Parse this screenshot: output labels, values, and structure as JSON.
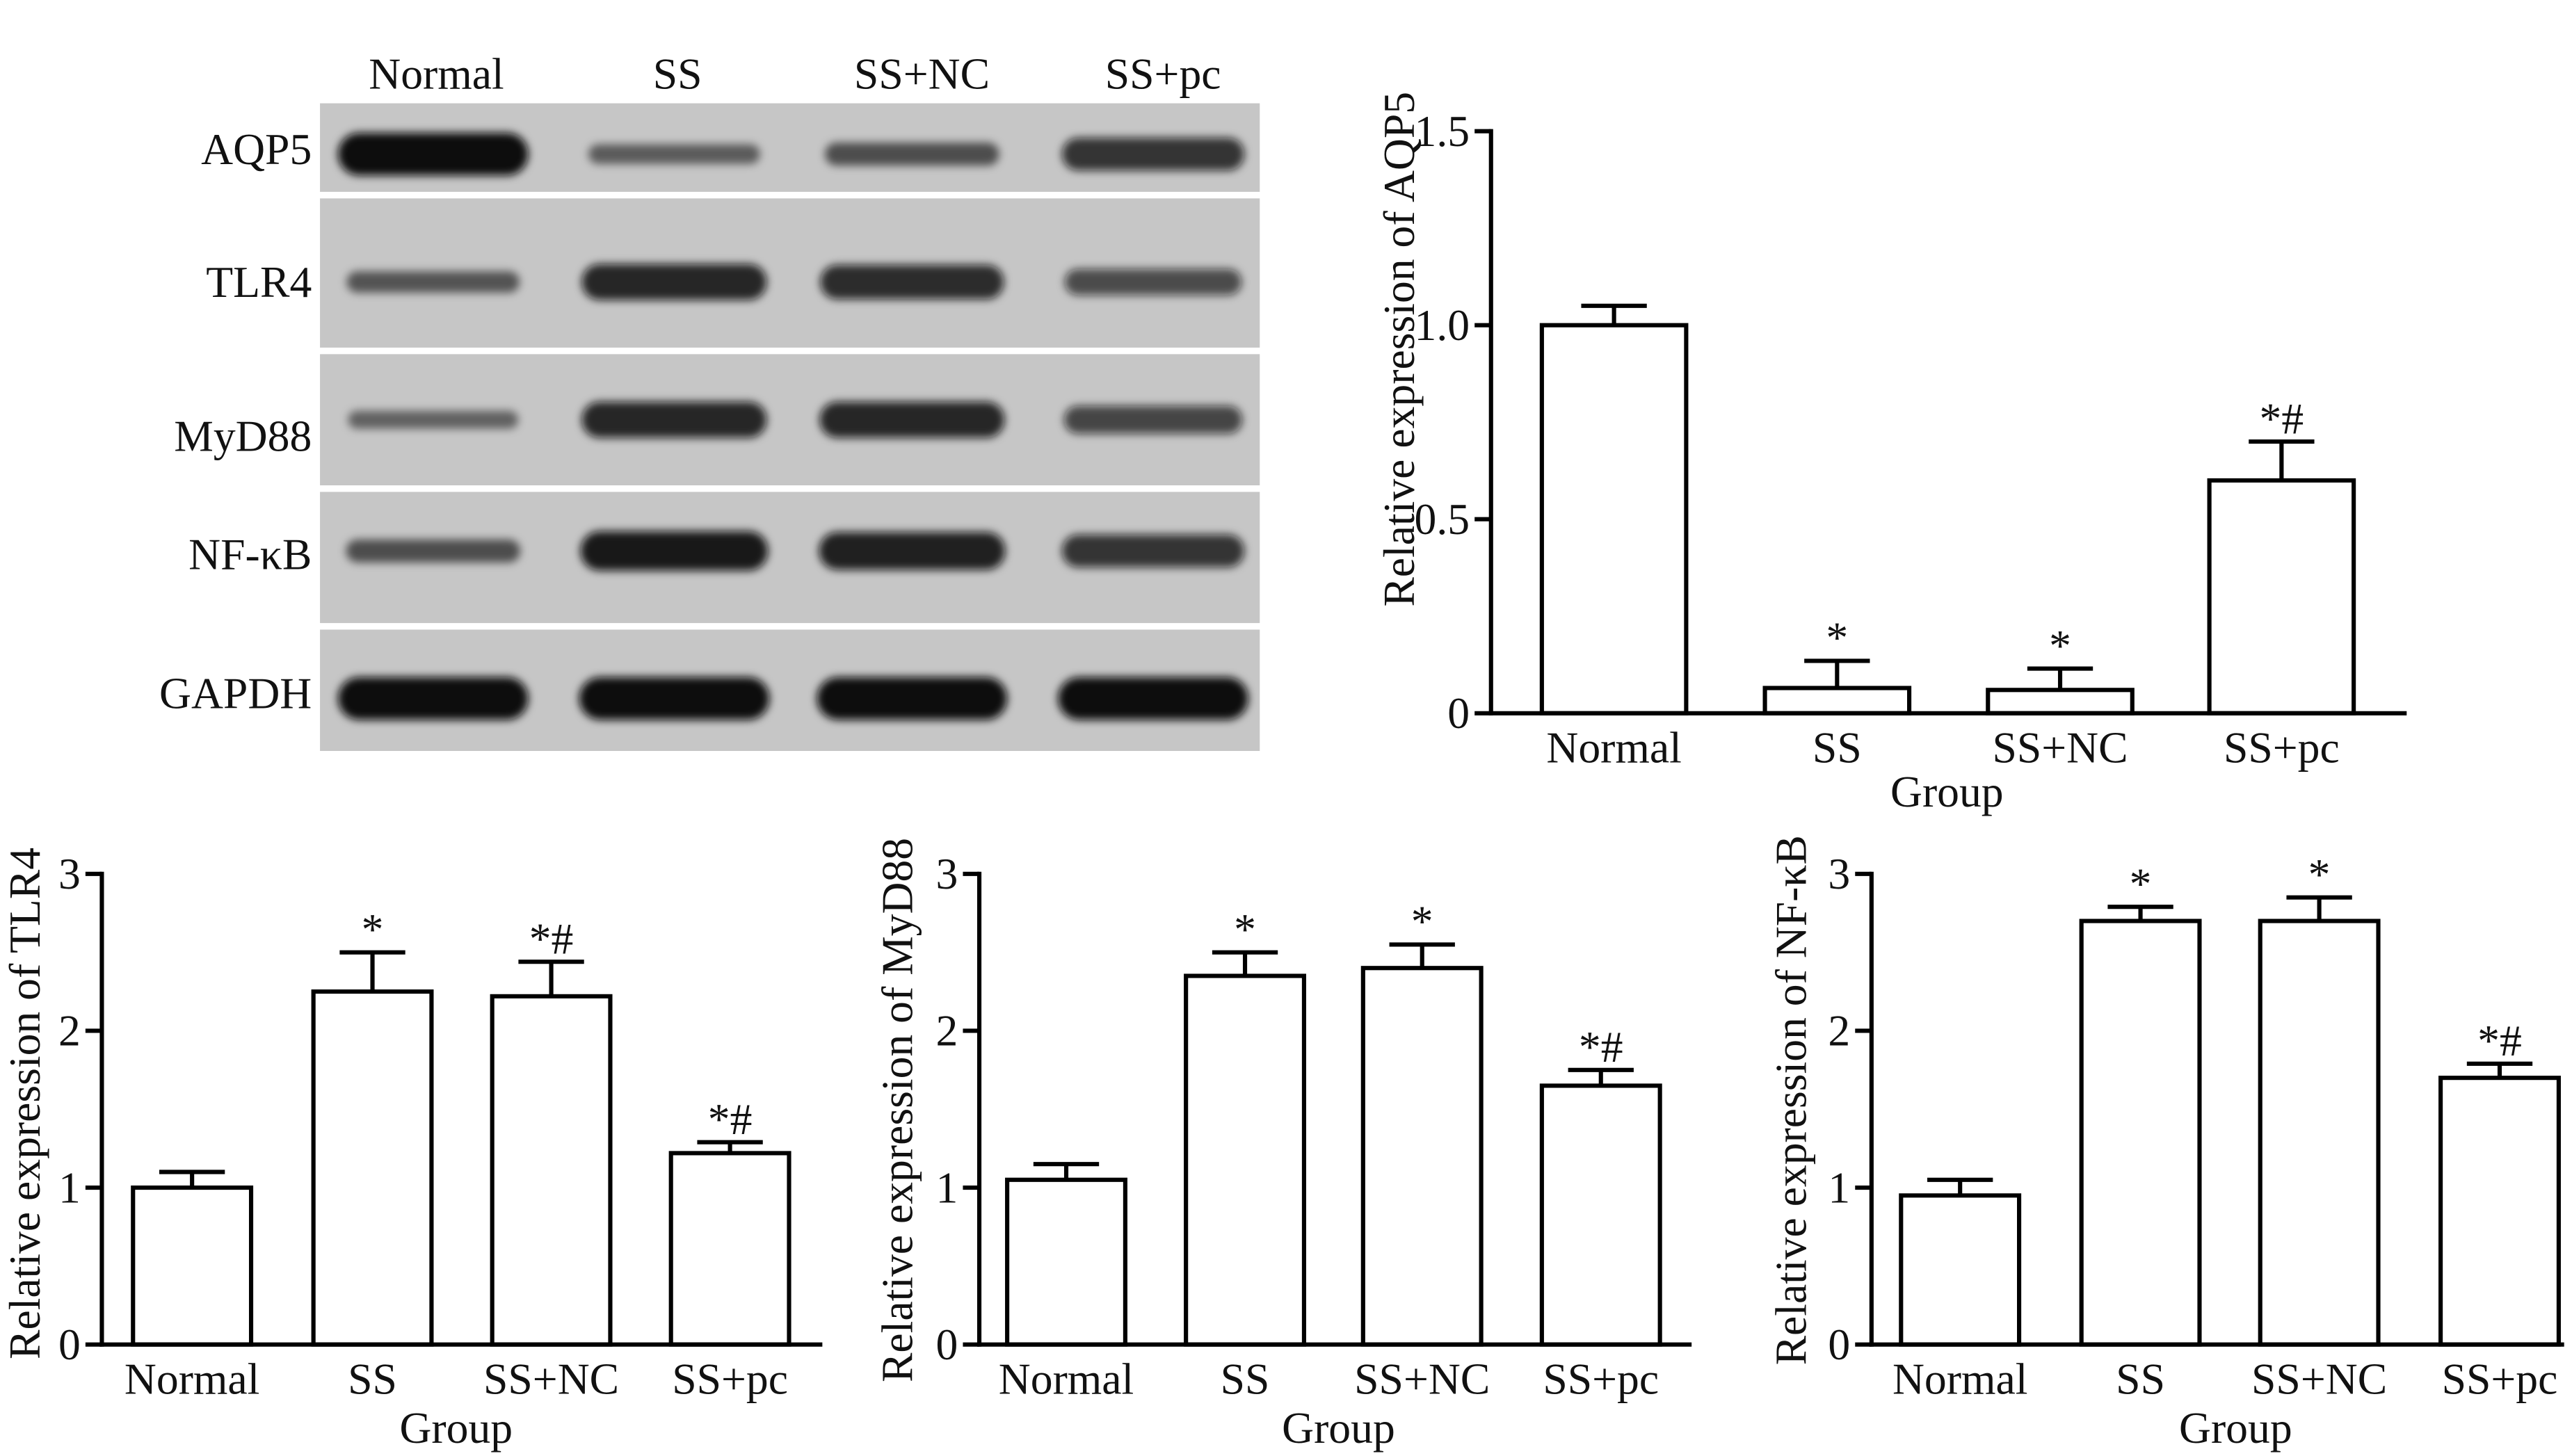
{
  "colors": {
    "bar_fill": "#ffffff",
    "bar_stroke": "#000000",
    "blot_background": "#c6c6c6",
    "band": "#0a0a0a"
  },
  "figure": {
    "blot": {
      "lanes": [
        "Normal",
        "SS",
        "SS+NC",
        "SS+pc"
      ],
      "rows": [
        {
          "label": "AQP5",
          "intensity": [
            1.0,
            0.3,
            0.4,
            0.7
          ]
        },
        {
          "label": "TLR4",
          "intensity": [
            0.35,
            0.8,
            0.75,
            0.5
          ]
        },
        {
          "label": "MyD88",
          "intensity": [
            0.25,
            0.8,
            0.8,
            0.55
          ]
        },
        {
          "label": "NF-κB",
          "intensity": [
            0.4,
            0.9,
            0.85,
            0.7
          ]
        },
        {
          "label": "GAPDH",
          "intensity": [
            1.0,
            1.0,
            1.0,
            1.0
          ]
        }
      ]
    }
  },
  "chart_data": [
    {
      "type": "bar",
      "categories": [
        "Normal",
        "SS",
        "SS+NC",
        "SS+pc"
      ],
      "values": [
        1.0,
        0.065,
        0.06,
        0.6
      ],
      "errors": [
        0.05,
        0.07,
        0.055,
        0.1
      ],
      "annotations": [
        "",
        "*",
        "*",
        "*#"
      ],
      "xlabel": "Group",
      "ylabel": "Relative expression of AQP5",
      "ylim": [
        0,
        1.5
      ],
      "yticks": [
        0,
        0.5,
        1.0,
        1.5
      ],
      "ytick_labels": [
        "0",
        "0.5",
        "1.0",
        "1.5"
      ]
    },
    {
      "type": "bar",
      "categories": [
        "Normal",
        "SS",
        "SS+NC",
        "SS+pc"
      ],
      "values": [
        1.0,
        2.25,
        2.22,
        1.22
      ],
      "errors": [
        0.1,
        0.25,
        0.22,
        0.07
      ],
      "annotations": [
        "",
        "*",
        "*#",
        "*#"
      ],
      "xlabel": "Group",
      "ylabel": "Relative expression of TLR4",
      "ylim": [
        0,
        3
      ],
      "yticks": [
        0,
        1,
        2,
        3
      ],
      "ytick_labels": [
        "0",
        "1",
        "2",
        "3"
      ]
    },
    {
      "type": "bar",
      "categories": [
        "Normal",
        "SS",
        "SS+NC",
        "SS+pc"
      ],
      "values": [
        1.05,
        2.35,
        2.4,
        1.65
      ],
      "errors": [
        0.1,
        0.15,
        0.15,
        0.1
      ],
      "annotations": [
        "",
        "*",
        "*",
        "*#"
      ],
      "xlabel": "Group",
      "ylabel": "Relative expression of MyD88",
      "ylim": [
        0,
        3
      ],
      "yticks": [
        0,
        1,
        2,
        3
      ],
      "ytick_labels": [
        "0",
        "1",
        "2",
        "3"
      ]
    },
    {
      "type": "bar",
      "categories": [
        "Normal",
        "SS",
        "SS+NC",
        "SS+pc"
      ],
      "values": [
        0.95,
        2.7,
        2.7,
        1.7
      ],
      "errors": [
        0.1,
        0.09,
        0.15,
        0.09
      ],
      "annotations": [
        "",
        "*",
        "*",
        "*#"
      ],
      "xlabel": "Group",
      "ylabel": "Relative expression of NF-κB",
      "ylim": [
        0,
        3
      ],
      "yticks": [
        0,
        1,
        2,
        3
      ],
      "ytick_labels": [
        "0",
        "1",
        "2",
        "3"
      ]
    }
  ]
}
